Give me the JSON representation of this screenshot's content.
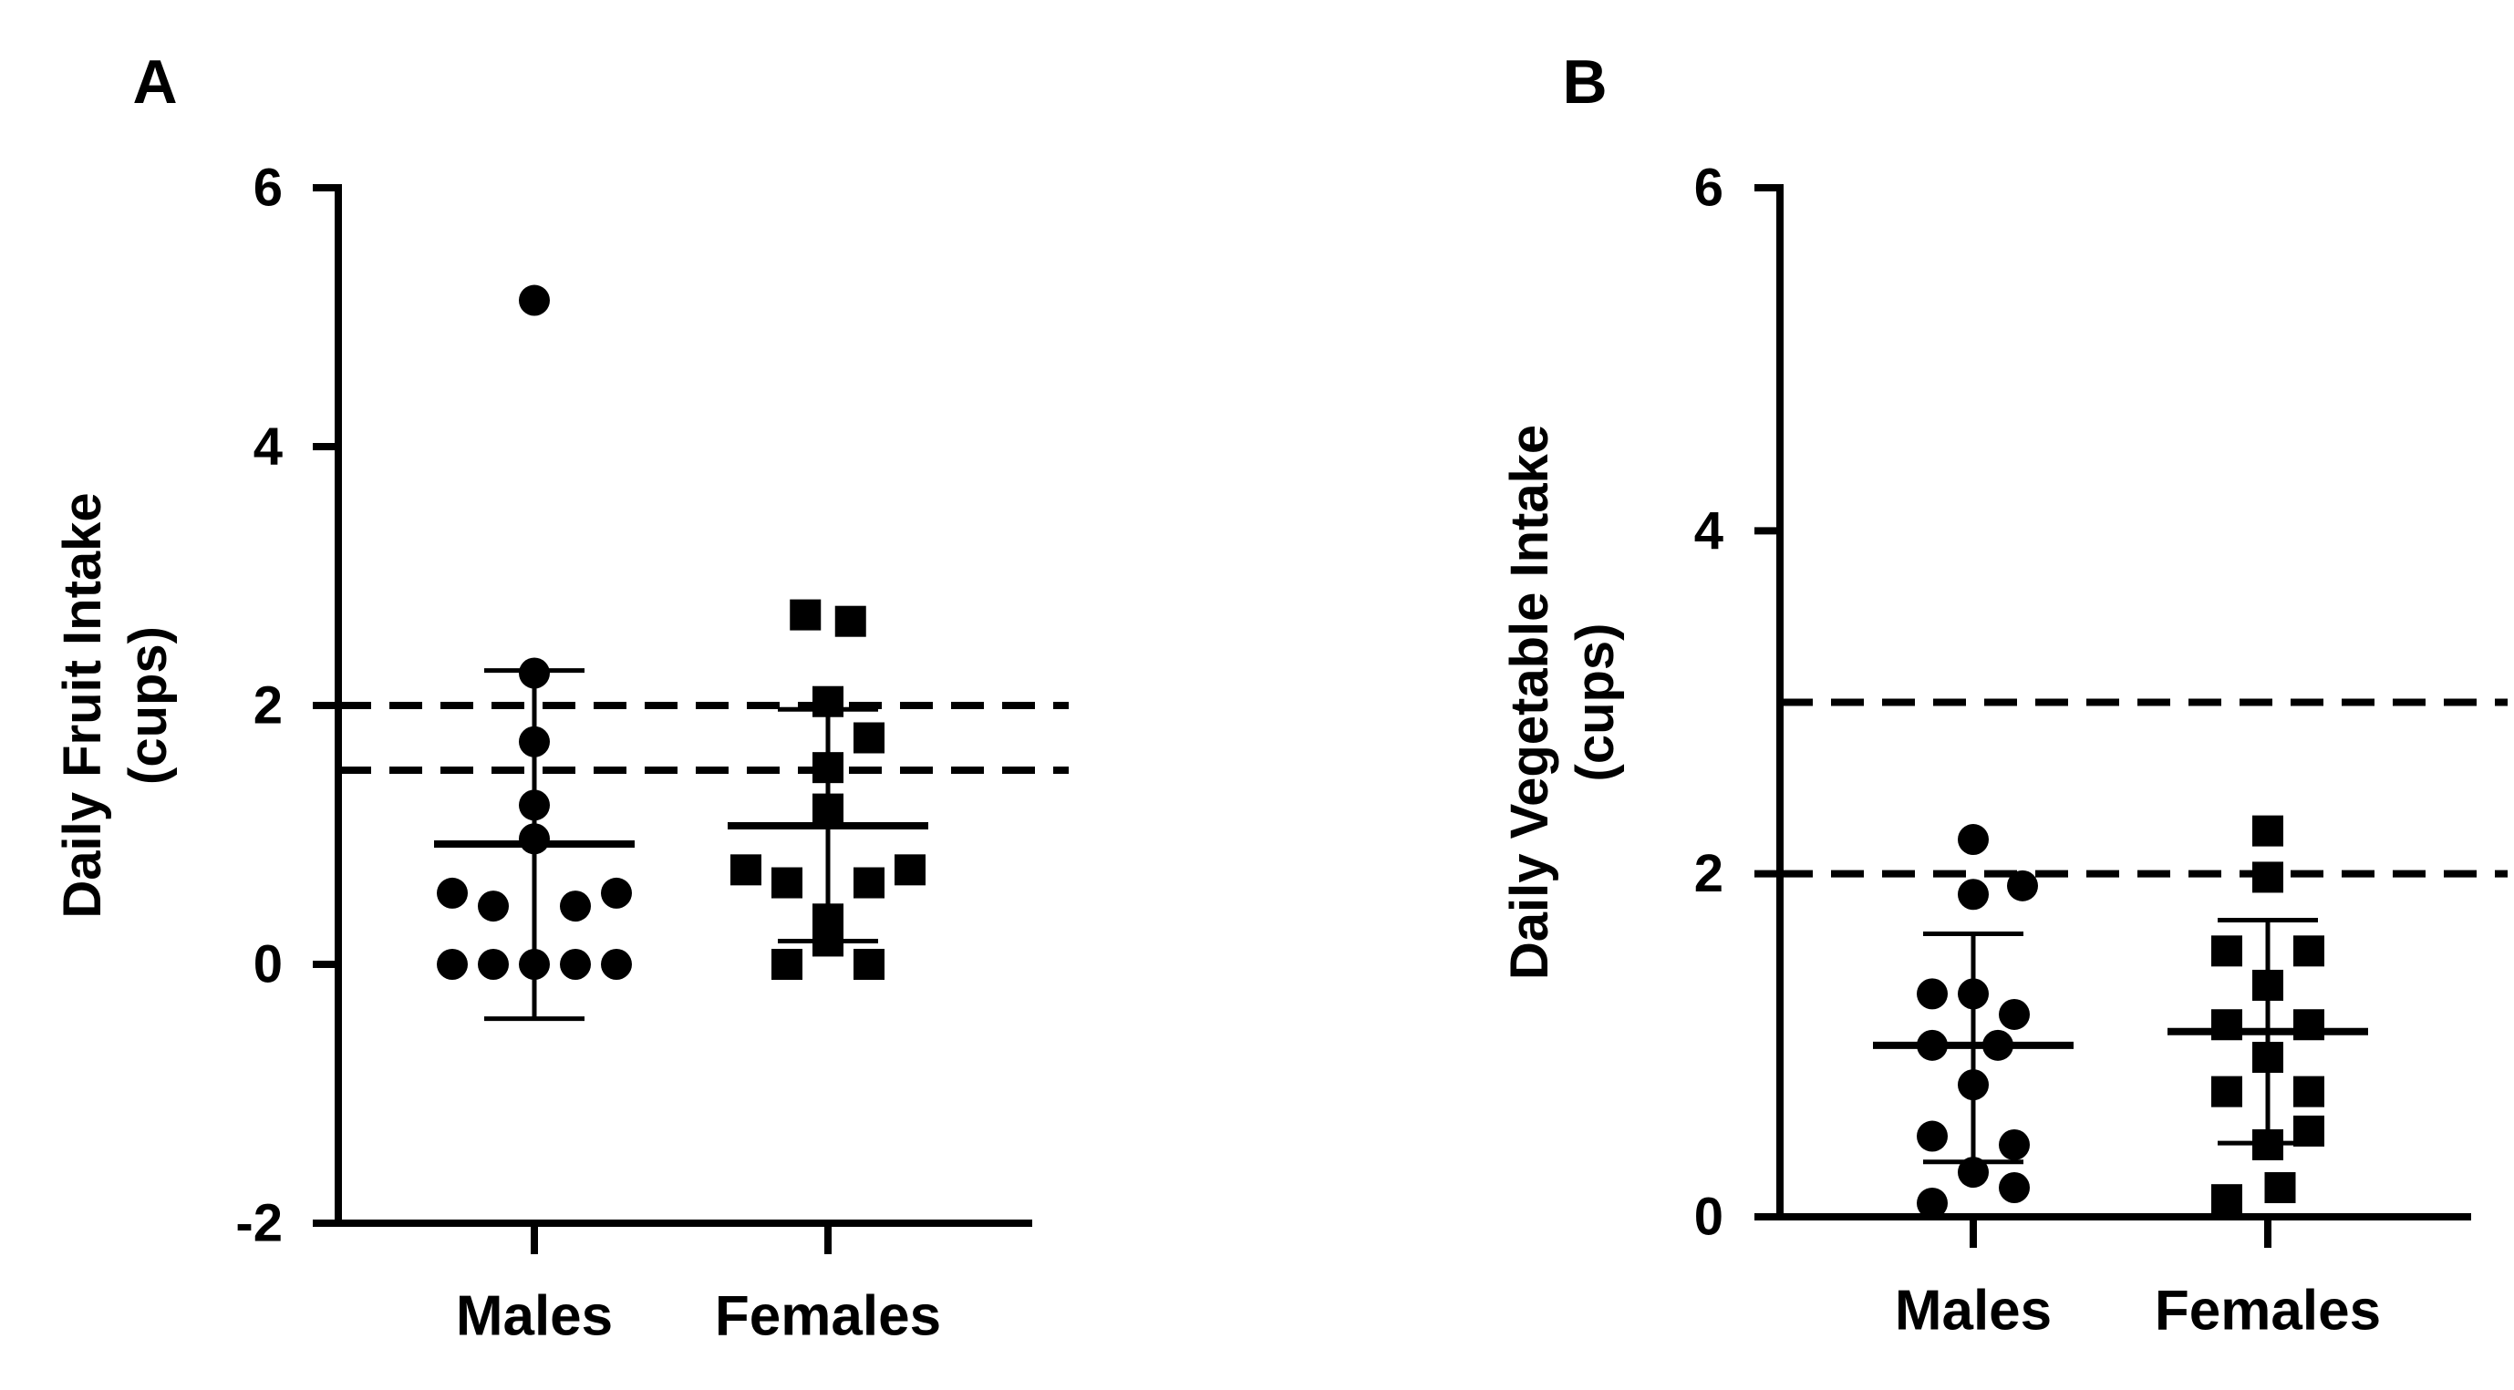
{
  "chart_data": [
    {
      "panel_label": "A",
      "type": "scatter",
      "ylabel_line1": "Daily Fruit Intake",
      "ylabel_line2": "(cups)",
      "ylim": [
        -2,
        6
      ],
      "yticks": [
        -2,
        0,
        2,
        4,
        6
      ],
      "categories": [
        "Males",
        "Females"
      ],
      "reference_lines": [
        2.0,
        1.5
      ],
      "series": [
        {
          "name": "Males",
          "marker": "circle",
          "mean": 0.93,
          "sd_upper": 2.27,
          "sd_lower": -0.42,
          "points": [
            {
              "v": 5.13,
              "o": 0
            },
            {
              "v": 2.25,
              "o": 0
            },
            {
              "v": 1.72,
              "o": 0
            },
            {
              "v": 1.23,
              "o": 0
            },
            {
              "v": 0.97,
              "o": 0
            },
            {
              "v": 0.55,
              "o": -2
            },
            {
              "v": 0.55,
              "o": 2
            },
            {
              "v": 0.45,
              "o": -1
            },
            {
              "v": 0.45,
              "o": 1
            },
            {
              "v": 0.0,
              "o": -2
            },
            {
              "v": 0.0,
              "o": -1
            },
            {
              "v": 0.0,
              "o": 0
            },
            {
              "v": 0.0,
              "o": 1
            },
            {
              "v": 0.0,
              "o": 2
            }
          ]
        },
        {
          "name": "Females",
          "marker": "square",
          "mean": 1.07,
          "sd_upper": 1.97,
          "sd_lower": 0.18,
          "points": [
            {
              "v": 2.7,
              "o": -0.55
            },
            {
              "v": 2.65,
              "o": 0.55
            },
            {
              "v": 2.03,
              "o": 0
            },
            {
              "v": 1.75,
              "o": 1
            },
            {
              "v": 1.52,
              "o": 0
            },
            {
              "v": 1.2,
              "o": 0
            },
            {
              "v": 0.73,
              "o": -2
            },
            {
              "v": 0.73,
              "o": 2
            },
            {
              "v": 0.63,
              "o": -1
            },
            {
              "v": 0.63,
              "o": 1
            },
            {
              "v": 0.35,
              "o": 0
            },
            {
              "v": 0.18,
              "o": 0
            },
            {
              "v": 0.0,
              "o": -1
            },
            {
              "v": 0.0,
              "o": 1
            }
          ]
        }
      ]
    },
    {
      "panel_label": "B",
      "type": "scatter",
      "ylabel_line1": "Daily Vegetable Intake",
      "ylabel_line2": "(cups)",
      "ylim": [
        0,
        6
      ],
      "yticks": [
        0,
        2,
        4,
        6
      ],
      "categories": [
        "Males",
        "Females"
      ],
      "reference_lines": [
        3.0,
        2.0
      ],
      "series": [
        {
          "name": "Males",
          "marker": "circle",
          "mean": 1.0,
          "sd_upper": 1.65,
          "sd_lower": 0.32,
          "points": [
            {
              "v": 2.2,
              "o": 0
            },
            {
              "v": 1.93,
              "o": 1.2
            },
            {
              "v": 1.88,
              "o": 0
            },
            {
              "v": 1.3,
              "o": -1
            },
            {
              "v": 1.3,
              "o": 0
            },
            {
              "v": 1.18,
              "o": 1
            },
            {
              "v": 1.0,
              "o": -1
            },
            {
              "v": 1.0,
              "o": 0.6
            },
            {
              "v": 0.77,
              "o": 0
            },
            {
              "v": 0.47,
              "o": -1
            },
            {
              "v": 0.42,
              "o": 1
            },
            {
              "v": 0.26,
              "o": 0
            },
            {
              "v": 0.17,
              "o": 1
            },
            {
              "v": 0.08,
              "o": -1
            }
          ]
        },
        {
          "name": "Females",
          "marker": "square",
          "mean": 1.08,
          "sd_upper": 1.73,
          "sd_lower": 0.43,
          "points": [
            {
              "v": 2.25,
              "o": 0
            },
            {
              "v": 1.98,
              "o": 0
            },
            {
              "v": 1.55,
              "o": -1
            },
            {
              "v": 1.55,
              "o": 1
            },
            {
              "v": 1.35,
              "o": 0
            },
            {
              "v": 1.12,
              "o": -1
            },
            {
              "v": 1.12,
              "o": 1
            },
            {
              "v": 0.93,
              "o": 0
            },
            {
              "v": 0.73,
              "o": -1
            },
            {
              "v": 0.73,
              "o": 1
            },
            {
              "v": 0.42,
              "o": 0
            },
            {
              "v": 0.5,
              "o": 1
            },
            {
              "v": 0.1,
              "o": -1
            },
            {
              "v": 0.17,
              "o": 0.3
            }
          ]
        }
      ]
    }
  ]
}
